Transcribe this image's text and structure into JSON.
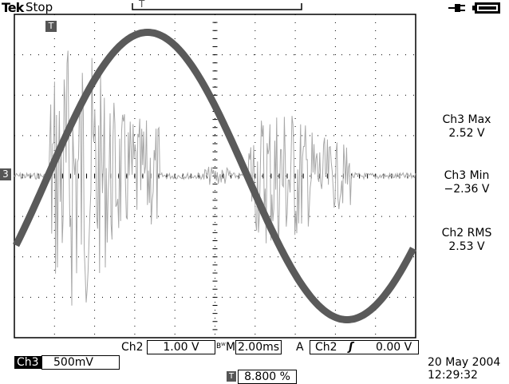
{
  "header": {
    "brand": "Tek",
    "acquisition_state": "Stop",
    "trigger_position_marker": "T",
    "power_icon": "plug-icon",
    "battery_icon": "battery-icon"
  },
  "markers": {
    "trigger_marker": "T",
    "channel_marker": "3"
  },
  "measurements": [
    {
      "label": "Ch3 Max",
      "value": "2.52 V"
    },
    {
      "label": "Ch3 Min",
      "value": "−2.36 V"
    },
    {
      "label": "Ch2 RMS",
      "value": "2.53 V"
    }
  ],
  "status_bar": {
    "ch2_label": "Ch2",
    "ch2_scale": "1.00 V",
    "bw_label": "Bᵂ",
    "timebase_prefix": "M",
    "timebase": "2.00ms",
    "trigger_mode": "A",
    "trigger_source": "Ch2",
    "trigger_slope": "ʃ",
    "trigger_level": "0.00 V",
    "ch3_label": "Ch3",
    "ch3_scale": "500mV",
    "trigger_pos_icon": "T",
    "trigger_pos_value": "8.800 %",
    "date": "20 May 2004",
    "time": "12:29:32"
  },
  "colors": {
    "sine_trace": "#5a5a5a",
    "noise_trace": "#a8a8a8",
    "graticule": "#000000"
  }
}
